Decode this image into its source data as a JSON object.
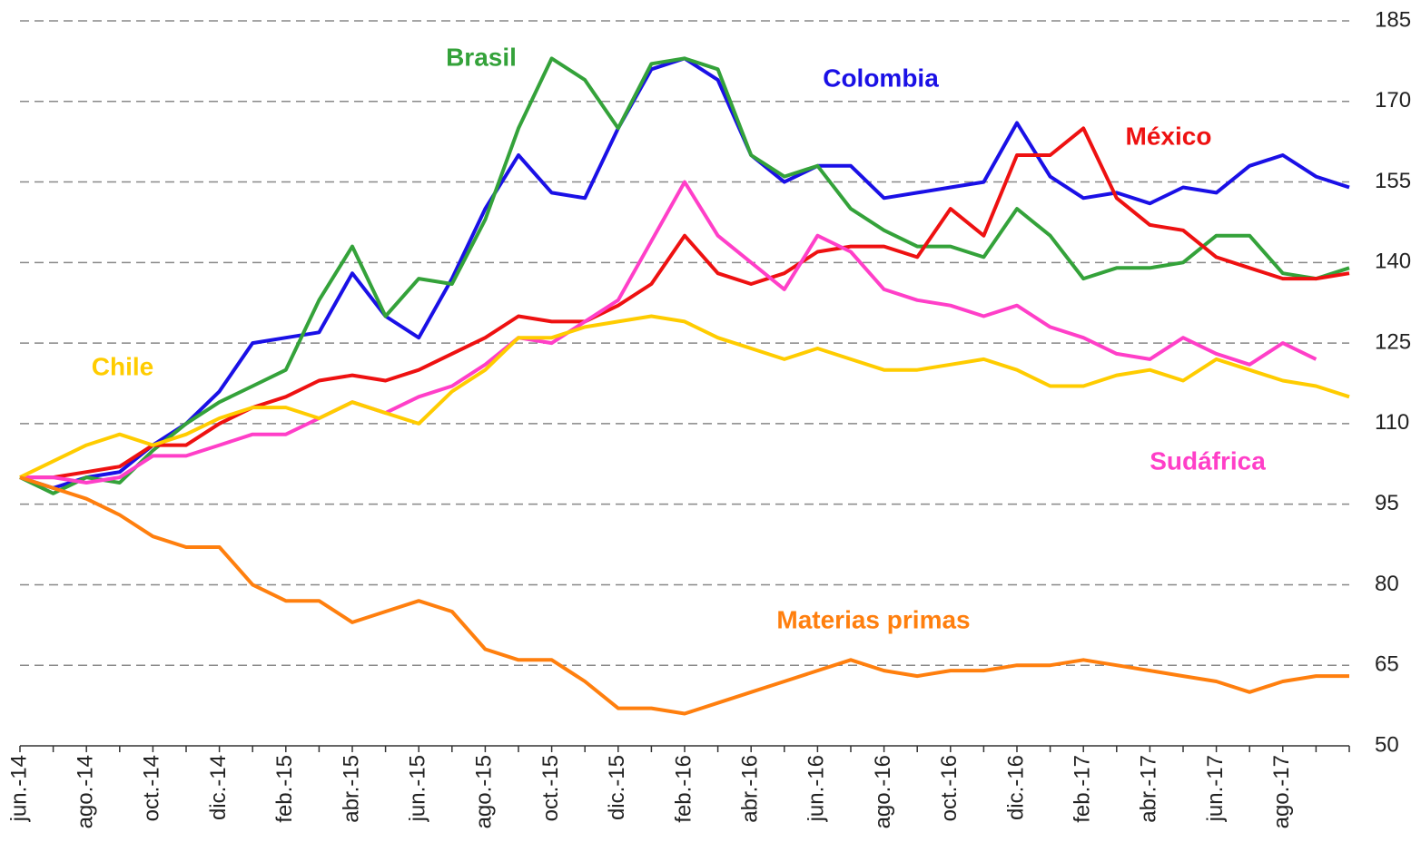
{
  "chart_data": {
    "type": "line",
    "categories": [
      "jun.-14",
      null,
      "ago.-14",
      null,
      "oct.-14",
      null,
      "dic.-14",
      null,
      "feb.-15",
      null,
      "abr.-15",
      null,
      "jun.-15",
      null,
      "ago.-15",
      null,
      "oct.-15",
      null,
      "dic.-15",
      null,
      "feb.-16",
      null,
      "abr.-16",
      null,
      "jun.-16",
      null,
      "ago.-16",
      null,
      "oct.-16",
      null,
      "dic.-16",
      null,
      "feb.-17",
      null,
      "abr.-17",
      null,
      "jun.-17",
      null,
      "ago.-17",
      null,
      null
    ],
    "series": [
      {
        "name": "Colombia",
        "color": "#1a10e6",
        "values": [
          100,
          98,
          100,
          101,
          106,
          110,
          116,
          125,
          126,
          127,
          138,
          130,
          126,
          137,
          150,
          160,
          153,
          152,
          165,
          176,
          178,
          174,
          160,
          155,
          158,
          158,
          152,
          153,
          154,
          155,
          166,
          156,
          152,
          153,
          151,
          154,
          153,
          158,
          160,
          156,
          154
        ]
      },
      {
        "name": "Brasil",
        "color": "#34a23a",
        "values": [
          100,
          97,
          100,
          99,
          105,
          110,
          114,
          117,
          120,
          133,
          143,
          130,
          137,
          136,
          148,
          165,
          178,
          174,
          165,
          177,
          178,
          176,
          160,
          156,
          158,
          150,
          146,
          143,
          143,
          141,
          150,
          145,
          137,
          139,
          139,
          140,
          145,
          145,
          138,
          137,
          139
        ]
      },
      {
        "name": "México",
        "color": "#ee1111",
        "values": [
          100,
          100,
          101,
          102,
          106,
          106,
          110,
          113,
          115,
          118,
          119,
          118,
          120,
          123,
          126,
          130,
          129,
          129,
          132,
          136,
          145,
          138,
          136,
          138,
          142,
          143,
          143,
          141,
          150,
          145,
          160,
          160,
          165,
          152,
          147,
          146,
          141,
          139,
          137,
          137,
          138
        ]
      },
      {
        "name": "Sudáfrica",
        "color": "#ff3fc8",
        "values": [
          100,
          100,
          99,
          100,
          104,
          104,
          106,
          108,
          108,
          111,
          114,
          112,
          115,
          117,
          121,
          126,
          125,
          129,
          133,
          144,
          155,
          145,
          140,
          135,
          145,
          142,
          135,
          133,
          132,
          130,
          132,
          128,
          126,
          123,
          122,
          126,
          123,
          121,
          125,
          122,
          null
        ]
      },
      {
        "name": "Chile",
        "color": "#ffcc00",
        "values": [
          100,
          103,
          106,
          108,
          106,
          108,
          111,
          113,
          113,
          111,
          114,
          112,
          110,
          116,
          120,
          126,
          126,
          128,
          129,
          130,
          129,
          126,
          124,
          122,
          124,
          122,
          120,
          120,
          121,
          122,
          120,
          117,
          117,
          119,
          120,
          118,
          122,
          120,
          118,
          117,
          115
        ]
      },
      {
        "name": "Materias primas",
        "color": "#ff7f0e",
        "values": [
          100,
          98,
          96,
          93,
          89,
          87,
          87,
          80,
          77,
          77,
          73,
          75,
          77,
          75,
          68,
          66,
          66,
          62,
          57,
          57,
          56,
          58,
          60,
          62,
          64,
          66,
          64,
          63,
          64,
          64,
          65,
          65,
          66,
          65,
          64,
          63,
          62,
          60,
          62,
          63,
          63
        ]
      }
    ],
    "ylim": [
      50,
      185
    ],
    "yticks": [
      50,
      65,
      80,
      95,
      110,
      125,
      140,
      155,
      170,
      185
    ],
    "grid": true
  }
}
